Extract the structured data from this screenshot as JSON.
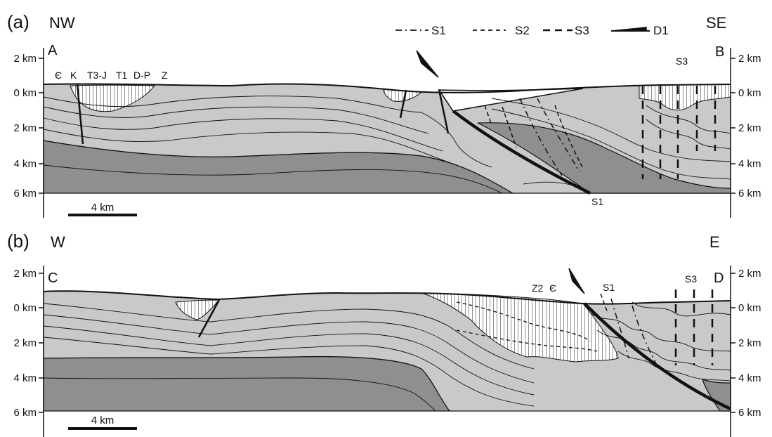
{
  "panels": [
    {
      "id": "a",
      "label": "(a)",
      "left_direction": "NW",
      "right_direction": "SE",
      "start_point": "A",
      "end_point": "B",
      "depth_ticks": [
        "2 km",
        "0 km",
        "2 km",
        "4 km",
        "6 km"
      ],
      "scale_bar": "4 km",
      "unit_labels": [
        "Є",
        "K",
        "T3-J",
        "T1",
        "D-P",
        "Z"
      ],
      "cleavage_labels": [
        "S3",
        "S1"
      ]
    },
    {
      "id": "b",
      "label": "(b)",
      "left_direction": "W",
      "right_direction": "E",
      "start_point": "C",
      "end_point": "D",
      "depth_ticks": [
        "2 km",
        "0 km",
        "2 km",
        "4 km",
        "6 km"
      ],
      "scale_bar": "4 km",
      "unit_labels": [
        "Z2",
        "Є"
      ],
      "cleavage_labels": [
        "S1",
        "S3"
      ]
    }
  ],
  "legend": {
    "items": [
      {
        "style": "dash-dot",
        "label": "S1"
      },
      {
        "style": "dashed",
        "label": "S2"
      },
      {
        "style": "long-dash",
        "label": "S3"
      },
      {
        "style": "half-arrow",
        "label": "D1"
      }
    ]
  },
  "colors": {
    "light_gray": "#c9c9c9",
    "dark_gray": "#8f8f8f",
    "outline": "#111111",
    "paper": "#ffffff"
  }
}
